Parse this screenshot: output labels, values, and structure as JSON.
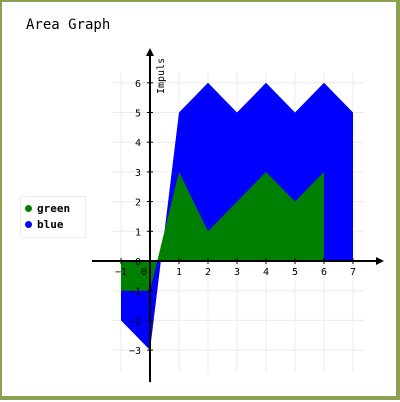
{
  "chart_data": {
    "type": "area",
    "title": "Area Graph",
    "xlabel": "",
    "ylabel": "Impuls",
    "x": [
      -1,
      0,
      0.5,
      1,
      2,
      3,
      4,
      5,
      6,
      7
    ],
    "xlim": [
      -1.5,
      7.8
    ],
    "ylim": [
      -4,
      7
    ],
    "x_ticks": [
      -1,
      0,
      1,
      2,
      3,
      4,
      5,
      6,
      7
    ],
    "y_ticks": [
      -3,
      -2,
      -1,
      0,
      1,
      2,
      3,
      4,
      5,
      6
    ],
    "grid": true,
    "legend_position": "left",
    "series": [
      {
        "name": "green",
        "color": "#008000",
        "x": [
          -1,
          0,
          0.5,
          1,
          2,
          3,
          4,
          5,
          6
        ],
        "values": [
          -1,
          -1,
          1,
          3,
          1,
          2,
          3,
          2,
          3
        ]
      },
      {
        "name": "blue",
        "color": "#0000ff",
        "x": [
          -1,
          0,
          1,
          2,
          3,
          4,
          5,
          6,
          7
        ],
        "values": [
          -2,
          -3,
          5,
          6,
          5,
          6,
          5,
          6,
          5
        ]
      }
    ]
  }
}
